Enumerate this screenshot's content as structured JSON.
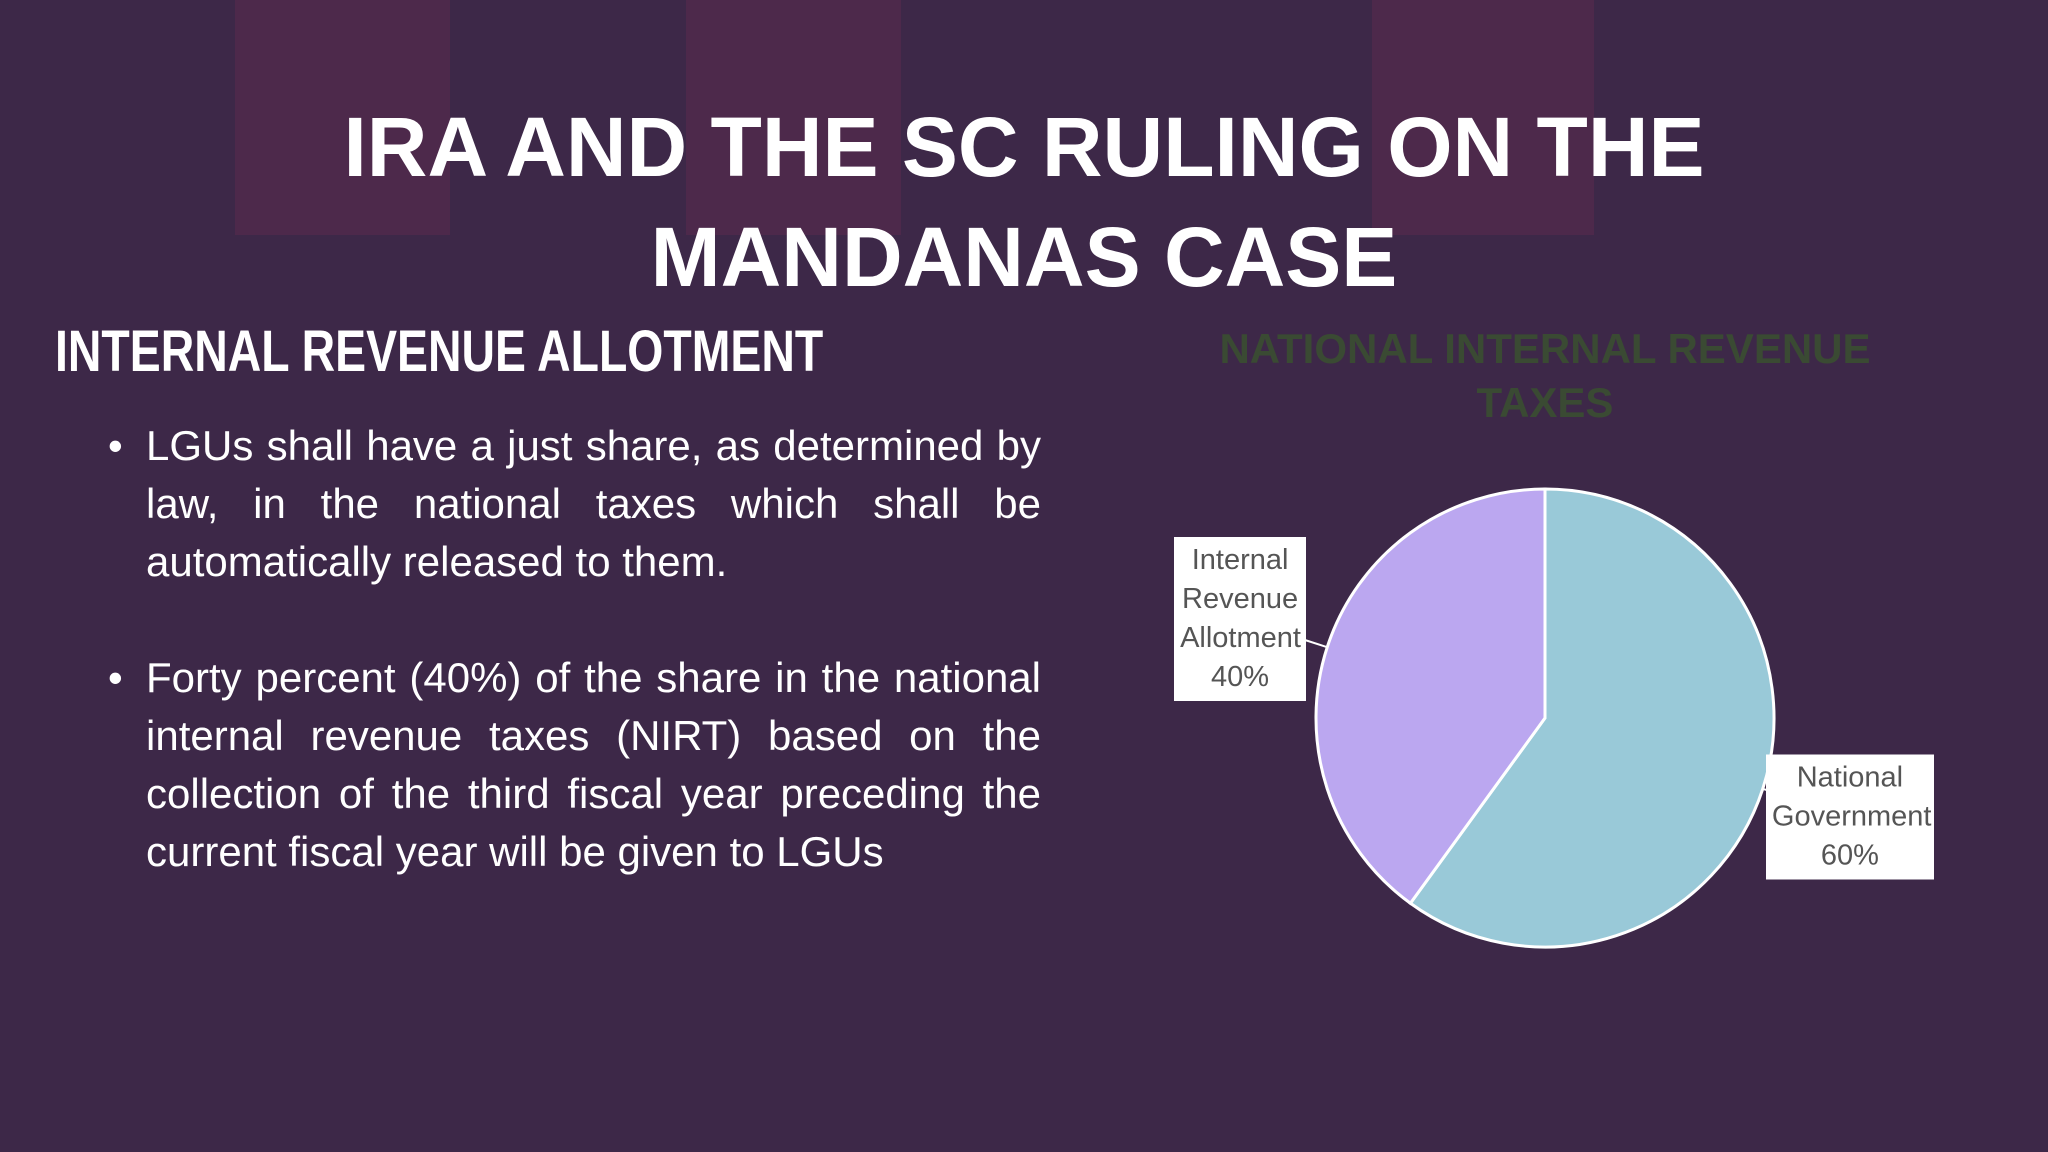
{
  "slide": {
    "title": "IRA AND THE SC RULING ON THE MANDANAS CASE",
    "heading": "INTERNAL REVENUE ALLOTMENT",
    "bullets": [
      "LGUs shall have a just share, as determined by law, in the national taxes which shall be automatically released to them.",
      "Forty percent (40%) of the share in the national internal revenue taxes (NIRT) based on the collection of the third fiscal year preceding the current fiscal year will be given to LGUs"
    ]
  },
  "chart_data": {
    "type": "pie",
    "title": "NATIONAL INTERNAL REVENUE TAXES",
    "categories": [
      "National Government",
      "Internal Revenue Allotment"
    ],
    "values": [
      60,
      40
    ],
    "value_labels": [
      "60%",
      "40%"
    ],
    "colors": [
      "#99c9d8",
      "#bba7f0"
    ]
  }
}
